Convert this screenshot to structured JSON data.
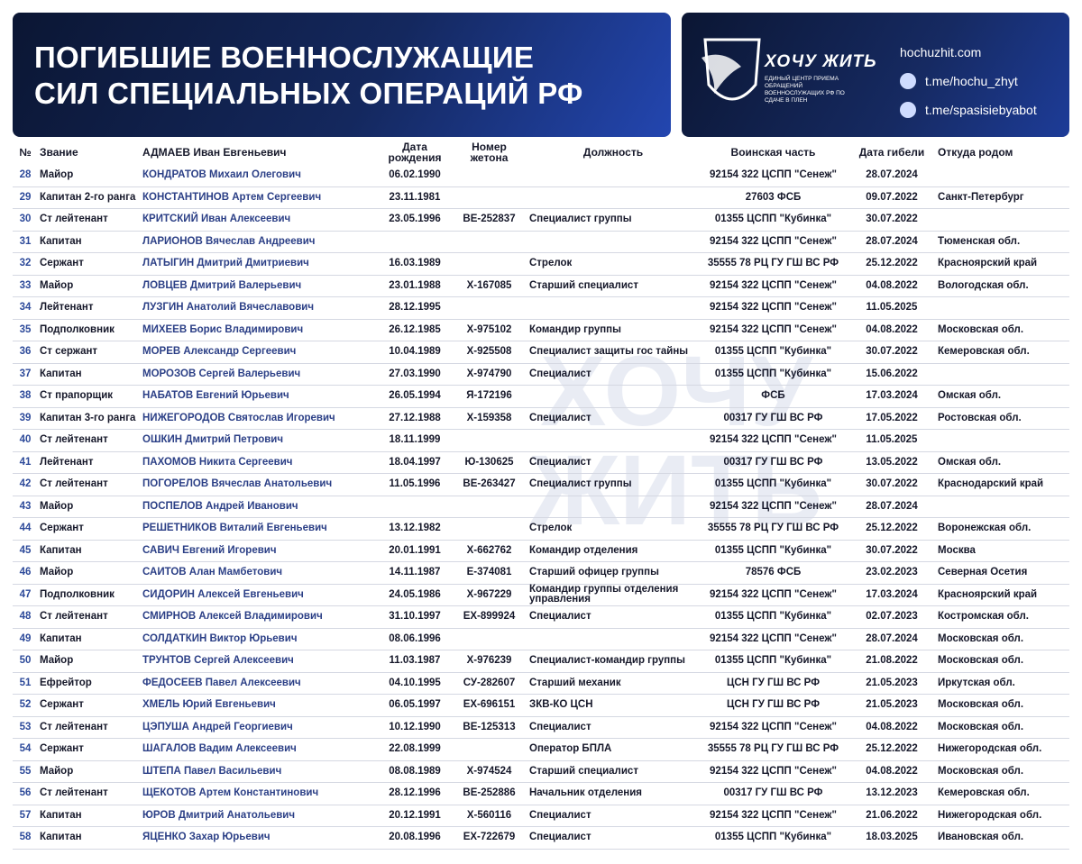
{
  "header": {
    "title": [
      "ПОГИБШИЕ ВОЕННОСЛУЖАЩИЕ",
      "СИЛ СПЕЦИАЛЬНЫХ ОПЕРАЦИЙ РФ"
    ]
  },
  "logo": {
    "name": "ХОЧУ ЖИТЬ",
    "subtitle": "ЕДИНЫЙ ЦЕНТР ПРИЕМА ОБРАЩЕНИЙ ВОЕННОСЛУЖАЩИХ РФ ПО СДАЧЕ В ПЛЕН"
  },
  "links": [
    "hochuzhit.com",
    "t.me/hochu_zhyt",
    "t.me/spasisiebyabot"
  ],
  "table": {
    "columns": [
      "№",
      "Звание",
      "АДМАЕВ Иван Евгеньевич",
      "Дата рождения",
      "Номер жетона",
      "Должность",
      "Воинская часть",
      "Дата гибели",
      "Откуда родом"
    ],
    "rows": [
      [
        "28",
        "Майор",
        "КОНДРАТОВ Михаил Олегович",
        "06.02.1990",
        null,
        null,
        "92154 322 ЦСПП \"Сенеж\"",
        "28.07.2024",
        null
      ],
      [
        "29",
        "Капитан 2-го ранга",
        "КОНСТАНТИНОВ Артем Сергеевич",
        "23.11.1981",
        null,
        null,
        "27603 ФСБ",
        "09.07.2022",
        "Санкт-Петербург"
      ],
      [
        "30",
        "Ст лейтенант",
        "КРИТСКИЙ Иван Алексеевич",
        "23.05.1996",
        "ВЕ-252837",
        "Специалист группы",
        "01355 ЦСПП \"Кубинка\"",
        "30.07.2022",
        null
      ],
      [
        "31",
        "Капитан",
        "ЛАРИОНОВ Вячеслав Андреевич",
        null,
        null,
        null,
        "92154 322 ЦСПП \"Сенеж\"",
        "28.07.2024",
        "Тюменская обл."
      ],
      [
        "32",
        "Сержант",
        "ЛАТЫГИН Дмитрий Дмитриевич",
        "16.03.1989",
        null,
        "Стрелок",
        "35555 78 РЦ ГУ ГШ ВС РФ",
        "25.12.2022",
        "Красноярский край"
      ],
      [
        "33",
        "Майор",
        "ЛОВЦЕВ Дмитрий Валерьевич",
        "23.01.1988",
        "Х-167085",
        "Старший специалист",
        "92154 322 ЦСПП \"Сенеж\"",
        "04.08.2022",
        "Вологодская обл."
      ],
      [
        "34",
        "Лейтенант",
        "ЛУЗГИН Анатолий Вячеславович",
        "28.12.1995",
        null,
        null,
        "92154 322 ЦСПП \"Сенеж\"",
        "11.05.2025",
        null
      ],
      [
        "35",
        "Подполковник",
        "МИХЕЕВ Борис Владимирович",
        "26.12.1985",
        "Х-975102",
        "Командир группы",
        "92154 322 ЦСПП \"Сенеж\"",
        "04.08.2022",
        "Московская обл."
      ],
      [
        "36",
        "Ст сержант",
        "МОРЕВ Александр Сергеевич",
        "10.04.1989",
        "Х-925508",
        "Специалист защиты гос тайны",
        "01355 ЦСПП \"Кубинка\"",
        "30.07.2022",
        "Кемеровская обл."
      ],
      [
        "37",
        "Капитан",
        "МОРОЗОВ Сергей Валерьевич",
        "27.03.1990",
        "Х-974790",
        "Специалист",
        "01355 ЦСПП \"Кубинка\"",
        "15.06.2022",
        null
      ],
      [
        "38",
        "Ст прапорщик",
        "НАБАТОВ Евгений Юрьевич",
        "26.05.1994",
        "Я-172196",
        null,
        "ФСБ",
        "17.03.2024",
        "Омская обл."
      ],
      [
        "39",
        "Капитан 3-го ранга",
        "НИЖЕГОРОДОВ Святослав Игоревич",
        "27.12.1988",
        "Х-159358",
        "Специалист",
        "00317 ГУ ГШ ВС РФ",
        "17.05.2022",
        "Ростовская обл."
      ],
      [
        "40",
        "Ст лейтенант",
        "ОШКИН Дмитрий Петрович",
        "18.11.1999",
        null,
        null,
        "92154 322 ЦСПП \"Сенеж\"",
        "11.05.2025",
        null
      ],
      [
        "41",
        "Лейтенант",
        "ПАХОМОВ Никита Сергеевич",
        "18.04.1997",
        "Ю-130625",
        "Специалист",
        "00317 ГУ ГШ ВС РФ",
        "13.05.2022",
        "Омская обл."
      ],
      [
        "42",
        "Ст лейтенант",
        "ПОГОРЕЛОВ Вячеслав Анатольевич",
        "11.05.1996",
        "ВЕ-263427",
        "Специалист группы",
        "01355 ЦСПП \"Кубинка\"",
        "30.07.2022",
        "Краснодарский край"
      ],
      [
        "43",
        "Майор",
        "ПОСПЕЛОВ Андрей Иванович",
        null,
        null,
        null,
        "92154 322 ЦСПП \"Сенеж\"",
        "28.07.2024",
        null
      ],
      [
        "44",
        "Сержант",
        "РЕШЕТНИКОВ Виталий Евгеньевич",
        "13.12.1982",
        null,
        "Стрелок",
        "35555 78 РЦ ГУ ГШ ВС РФ",
        "25.12.2022",
        "Воронежская обл."
      ],
      [
        "45",
        "Капитан",
        "САВИЧ Евгений Игоревич",
        "20.01.1991",
        "Х-662762",
        "Командир отделения",
        "01355 ЦСПП \"Кубинка\"",
        "30.07.2022",
        "Москва"
      ],
      [
        "46",
        "Майор",
        "САИТОВ Алан Мамбетович",
        "14.11.1987",
        "Е-374081",
        "Старший офицер группы",
        "78576 ФСБ",
        "23.02.2023",
        "Северная Осетия"
      ],
      [
        "47",
        "Подполковник",
        "СИДОРИН Алексей Евгеньевич",
        "24.05.1986",
        "Х-967229",
        "Командир группы отделения управления",
        "92154 322 ЦСПП \"Сенеж\"",
        "17.03.2024",
        "Красноярский край"
      ],
      [
        "48",
        "Ст лейтенант",
        "СМИРНОВ Алексей Владимирович",
        "31.10.1997",
        "ЕХ-899924",
        "Специалист",
        "01355 ЦСПП \"Кубинка\"",
        "02.07.2023",
        "Костромская обл."
      ],
      [
        "49",
        "Капитан",
        "СОЛДАТКИН Виктор Юрьевич",
        "08.06.1996",
        null,
        null,
        "92154 322 ЦСПП \"Сенеж\"",
        "28.07.2024",
        "Московская обл."
      ],
      [
        "50",
        "Майор",
        "ТРУНТОВ Сергей Алексеевич",
        "11.03.1987",
        "Х-976239",
        "Специалист-командир группы",
        "01355 ЦСПП \"Кубинка\"",
        "21.08.2022",
        "Московская обл."
      ],
      [
        "51",
        "Ефрейтор",
        "ФЕДОСЕЕВ Павел Алексеевич",
        "04.10.1995",
        "СУ-282607",
        "Старший механик",
        "ЦСН ГУ ГШ ВС РФ",
        "21.05.2023",
        "Иркутская обл."
      ],
      [
        "52",
        "Сержант",
        "ХМЕЛЬ Юрий Евгеньевич",
        "06.05.1997",
        "ЕХ-696151",
        "ЗКВ-КО ЦСН",
        "ЦСН ГУ ГШ ВС РФ",
        "21.05.2023",
        "Московская обл."
      ],
      [
        "53",
        "Ст лейтенант",
        "ЦЭПУША Андрей Георгиевич",
        "10.12.1990",
        "ВЕ-125313",
        "Специалист",
        "92154 322 ЦСПП \"Сенеж\"",
        "04.08.2022",
        "Московская обл."
      ],
      [
        "54",
        "Сержант",
        "ШАГАЛОВ Вадим Алексеевич",
        "22.08.1999",
        null,
        "Оператор БПЛА",
        "35555 78 РЦ ГУ ГШ ВС РФ",
        "25.12.2022",
        "Нижегородская обл."
      ],
      [
        "55",
        "Майор",
        "ШТЕПА Павел Васильевич",
        "08.08.1989",
        "Х-974524",
        "Старший специалист",
        "92154 322 ЦСПП \"Сенеж\"",
        "04.08.2022",
        "Московская обл."
      ],
      [
        "56",
        "Ст лейтенант",
        "ЩЕКОТОВ Артем Константинович",
        "28.12.1996",
        "ВЕ-252886",
        "Начальник отделения",
        "00317 ГУ ГШ ВС РФ",
        "13.12.2023",
        "Кемеровская обл."
      ],
      [
        "57",
        "Капитан",
        "ЮРОВ Дмитрий Анатольевич",
        "20.12.1991",
        "Х-560116",
        "Специалист",
        "92154 322 ЦСПП \"Сенеж\"",
        "21.06.2022",
        "Нижегородская обл."
      ],
      [
        "58",
        "Капитан",
        "ЯЦЕНКО Захар Юрьевич",
        "20.08.1996",
        "ЕХ-722679",
        "Специалист",
        "01355 ЦСПП \"Кубинка\"",
        "18.03.2025",
        "Ивановская обл."
      ]
    ]
  }
}
